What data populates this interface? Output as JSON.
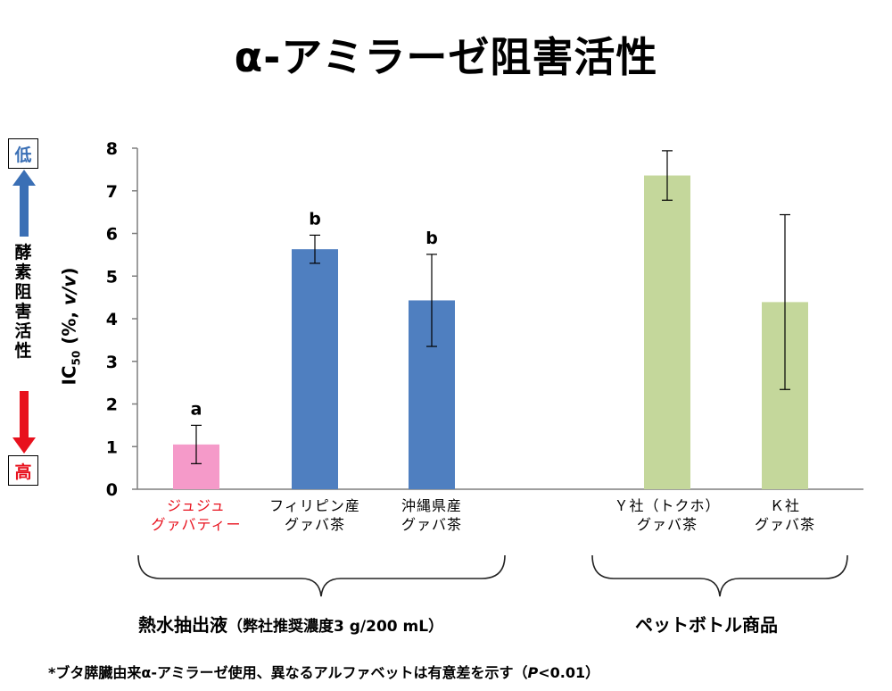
{
  "title": "α-アミラーゼ阻害活性",
  "side": {
    "low": "低",
    "high": "高",
    "label_chars": [
      "酵",
      "素",
      "阻",
      "害",
      "活",
      "性"
    ]
  },
  "footnote": "*ブタ膵臓由来α-アミラーゼ使用、異なるアルファベットは有意差を示す（P<0.01）",
  "groups": {
    "left": {
      "main": "熱水抽出液",
      "sub": "（弊社推奨濃度3 g/200 mL）"
    },
    "right": {
      "main": "ペットボトル商品"
    }
  },
  "colors": {
    "arrow_blue": "#3a6fb5",
    "arrow_red": "#e8111d",
    "label_red": "#e8111d"
  },
  "chart_data": {
    "type": "bar",
    "ylabel": "IC50 (%, v/v)",
    "ylim": [
      0,
      8
    ],
    "yticks": [
      "0",
      "1",
      "2",
      "3",
      "4",
      "5",
      "6",
      "7",
      "8"
    ],
    "grid": false,
    "categories": [
      [
        "ジュジュ",
        "グァバティー"
      ],
      [
        "フィリピン産",
        "グァバ茶"
      ],
      [
        "沖縄県産",
        "グァバ茶"
      ],
      [
        "Ｙ社（トクホ）",
        "グァバ茶"
      ],
      [
        "Ｋ社",
        "グァバ茶"
      ]
    ],
    "values": [
      1.05,
      5.63,
      4.43,
      7.36,
      4.39
    ],
    "errors": [
      0.45,
      0.33,
      1.08,
      0.58,
      2.05
    ],
    "significance": [
      "a",
      "b",
      "b",
      "",
      ""
    ],
    "bar_colors": [
      "#f59ac9",
      "#4f7fc0",
      "#4f7fc0",
      "#c4d79b",
      "#c4d79b"
    ]
  }
}
